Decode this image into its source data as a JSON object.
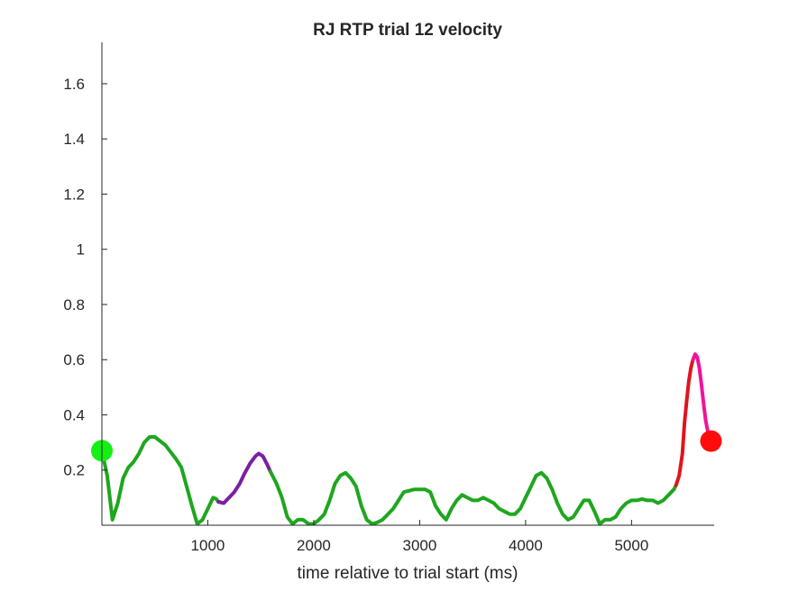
{
  "chart_data": {
    "type": "line",
    "title": "RJ  RTP trial 12 velocity",
    "xlabel": "time relative to trial start (ms)",
    "ylabel": "",
    "xlim": [
      0,
      5780
    ],
    "ylim": [
      0,
      1.75
    ],
    "x_ticks": [
      1000,
      2000,
      3000,
      4000,
      5000
    ],
    "x_tick_labels": [
      "1000",
      "2000",
      "3000",
      "4000",
      "5000"
    ],
    "y_ticks": [
      0.2,
      0.4,
      0.6,
      0.8,
      1,
      1.2,
      1.4,
      1.6
    ],
    "y_tick_labels": [
      "0.2",
      "0.4",
      "0.6",
      "0.8",
      "1",
      "1.2",
      "1.4",
      "1.6"
    ],
    "grid": false,
    "series": [
      {
        "color": "#1fa61f",
        "points": [
          [
            0,
            0.27
          ],
          [
            50,
            0.18
          ],
          [
            100,
            0.02
          ],
          [
            150,
            0.08
          ],
          [
            200,
            0.17
          ],
          [
            250,
            0.21
          ],
          [
            300,
            0.23
          ],
          [
            350,
            0.26
          ],
          [
            400,
            0.3
          ],
          [
            450,
            0.32
          ],
          [
            500,
            0.32
          ],
          [
            600,
            0.29
          ],
          [
            700,
            0.24
          ],
          [
            750,
            0.21
          ],
          [
            800,
            0.14
          ],
          [
            850,
            0.07
          ],
          [
            900,
            0.005
          ],
          [
            950,
            0.02
          ],
          [
            1000,
            0.06
          ],
          [
            1050,
            0.1
          ],
          [
            1080,
            0.095
          ],
          [
            1100,
            0.085
          ]
        ]
      },
      {
        "color": "#7b1fa2",
        "points": [
          [
            1100,
            0.085
          ],
          [
            1150,
            0.08
          ],
          [
            1200,
            0.1
          ],
          [
            1250,
            0.12
          ],
          [
            1300,
            0.15
          ],
          [
            1350,
            0.19
          ],
          [
            1400,
            0.225
          ],
          [
            1450,
            0.25
          ],
          [
            1480,
            0.26
          ],
          [
            1520,
            0.25
          ],
          [
            1560,
            0.22
          ],
          [
            1590,
            0.195
          ]
        ]
      },
      {
        "color": "#1fa61f",
        "points": [
          [
            1590,
            0.195
          ],
          [
            1650,
            0.15
          ],
          [
            1700,
            0.1
          ],
          [
            1750,
            0.03
          ],
          [
            1800,
            0.005
          ],
          [
            1850,
            0.02
          ],
          [
            1900,
            0.02
          ],
          [
            1950,
            0.005
          ],
          [
            2000,
            0.005
          ],
          [
            2050,
            0.02
          ],
          [
            2100,
            0.04
          ],
          [
            2150,
            0.09
          ],
          [
            2200,
            0.15
          ],
          [
            2250,
            0.18
          ],
          [
            2300,
            0.19
          ],
          [
            2350,
            0.17
          ],
          [
            2400,
            0.14
          ],
          [
            2450,
            0.07
          ],
          [
            2500,
            0.02
          ],
          [
            2550,
            0.005
          ],
          [
            2600,
            0.01
          ],
          [
            2650,
            0.02
          ],
          [
            2700,
            0.04
          ],
          [
            2750,
            0.06
          ],
          [
            2800,
            0.09
          ],
          [
            2850,
            0.12
          ],
          [
            2900,
            0.125
          ],
          [
            2950,
            0.13
          ],
          [
            3050,
            0.13
          ],
          [
            3100,
            0.12
          ],
          [
            3150,
            0.07
          ],
          [
            3200,
            0.04
          ],
          [
            3250,
            0.02
          ],
          [
            3300,
            0.06
          ],
          [
            3350,
            0.09
          ],
          [
            3400,
            0.11
          ],
          [
            3450,
            0.1
          ],
          [
            3500,
            0.09
          ],
          [
            3550,
            0.09
          ],
          [
            3600,
            0.1
          ],
          [
            3650,
            0.09
          ],
          [
            3700,
            0.08
          ],
          [
            3750,
            0.06
          ],
          [
            3800,
            0.05
          ],
          [
            3850,
            0.04
          ],
          [
            3900,
            0.04
          ],
          [
            3950,
            0.06
          ],
          [
            4000,
            0.1
          ],
          [
            4050,
            0.14
          ],
          [
            4100,
            0.18
          ],
          [
            4150,
            0.19
          ],
          [
            4200,
            0.17
          ],
          [
            4250,
            0.13
          ],
          [
            4300,
            0.08
          ],
          [
            4350,
            0.04
          ],
          [
            4400,
            0.02
          ],
          [
            4450,
            0.03
          ],
          [
            4500,
            0.06
          ],
          [
            4550,
            0.09
          ],
          [
            4600,
            0.09
          ],
          [
            4650,
            0.05
          ],
          [
            4700,
            0.005
          ],
          [
            4750,
            0.02
          ],
          [
            4800,
            0.02
          ],
          [
            4850,
            0.03
          ],
          [
            4900,
            0.06
          ],
          [
            4950,
            0.08
          ],
          [
            5000,
            0.09
          ],
          [
            5050,
            0.09
          ],
          [
            5100,
            0.095
          ],
          [
            5150,
            0.09
          ],
          [
            5200,
            0.09
          ],
          [
            5250,
            0.08
          ],
          [
            5300,
            0.09
          ],
          [
            5350,
            0.11
          ],
          [
            5400,
            0.13
          ],
          [
            5420,
            0.145
          ]
        ]
      },
      {
        "color": "#e0141e",
        "points": [
          [
            5420,
            0.145
          ],
          [
            5450,
            0.18
          ],
          [
            5480,
            0.26
          ],
          [
            5500,
            0.37
          ],
          [
            5520,
            0.45
          ],
          [
            5540,
            0.52
          ],
          [
            5560,
            0.57
          ],
          [
            5580,
            0.6
          ]
        ]
      },
      {
        "color": "#f0149a",
        "points": [
          [
            5580,
            0.6
          ],
          [
            5600,
            0.62
          ],
          [
            5620,
            0.61
          ],
          [
            5640,
            0.57
          ],
          [
            5660,
            0.51
          ],
          [
            5680,
            0.44
          ],
          [
            5700,
            0.38
          ],
          [
            5730,
            0.32
          ],
          [
            5750,
            0.305
          ]
        ]
      }
    ],
    "markers": [
      {
        "label": "start",
        "x": 0,
        "y": 0.27,
        "color": "#14f014"
      },
      {
        "label": "end",
        "x": 5750,
        "y": 0.305,
        "color": "#ff0d0d"
      }
    ]
  }
}
